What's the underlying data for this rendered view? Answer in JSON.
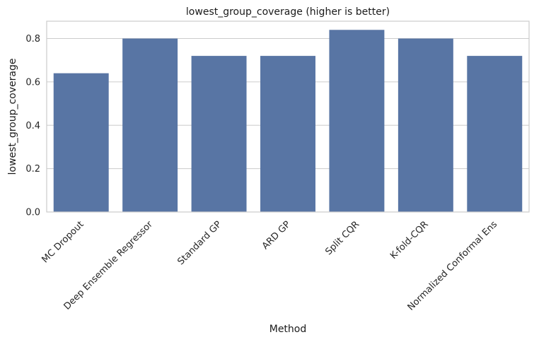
{
  "chart_data": {
    "type": "bar",
    "title": "lowest_group_coverage (higher is better)",
    "xlabel": "Method",
    "ylabel": "lowest_group_coverage",
    "categories": [
      "MC Dropout",
      "Deep Ensemble Regressor",
      "Standard GP",
      "ARD GP",
      "Split CQR",
      "K-fold-CQR",
      "Normalized Conformal Ens"
    ],
    "values": [
      0.64,
      0.8,
      0.72,
      0.72,
      0.84,
      0.8,
      0.72
    ],
    "ylim": [
      0,
      0.88
    ],
    "yticks": [
      0.0,
      0.2,
      0.4,
      0.6,
      0.8
    ],
    "ytick_labels": [
      "0.0",
      "0.2",
      "0.4",
      "0.6",
      "0.8"
    ],
    "grid": true,
    "bar_color": "#5875a4"
  }
}
